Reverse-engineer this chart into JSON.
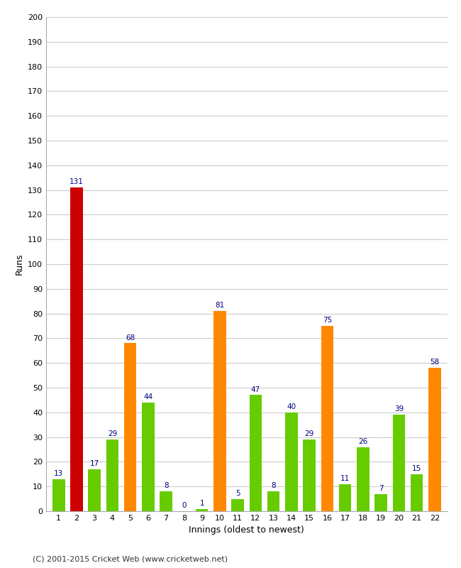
{
  "innings": [
    1,
    2,
    3,
    4,
    5,
    6,
    7,
    8,
    9,
    10,
    11,
    12,
    13,
    14,
    15,
    16,
    17,
    18,
    19,
    20,
    21,
    22
  ],
  "values": [
    13,
    131,
    17,
    29,
    68,
    44,
    8,
    0,
    1,
    81,
    5,
    47,
    8,
    40,
    29,
    75,
    11,
    26,
    7,
    39,
    15,
    58
  ],
  "colors": [
    "#66cc00",
    "#cc0000",
    "#66cc00",
    "#66cc00",
    "#ff8800",
    "#66cc00",
    "#66cc00",
    "#66cc00",
    "#66cc00",
    "#ff8800",
    "#66cc00",
    "#66cc00",
    "#66cc00",
    "#66cc00",
    "#66cc00",
    "#ff8800",
    "#66cc00",
    "#66cc00",
    "#66cc00",
    "#66cc00",
    "#66cc00",
    "#ff8800"
  ],
  "xlabel": "Innings (oldest to newest)",
  "ylabel": "Runs",
  "ylim": [
    0,
    200
  ],
  "yticks": [
    0,
    10,
    20,
    30,
    40,
    50,
    60,
    70,
    80,
    90,
    100,
    110,
    120,
    130,
    140,
    150,
    160,
    170,
    180,
    190,
    200
  ],
  "label_color": "#000080",
  "bg_color": "#ffffff",
  "grid_color": "#cccccc",
  "footer": "(C) 2001-2015 Cricket Web (www.cricketweb.net)"
}
